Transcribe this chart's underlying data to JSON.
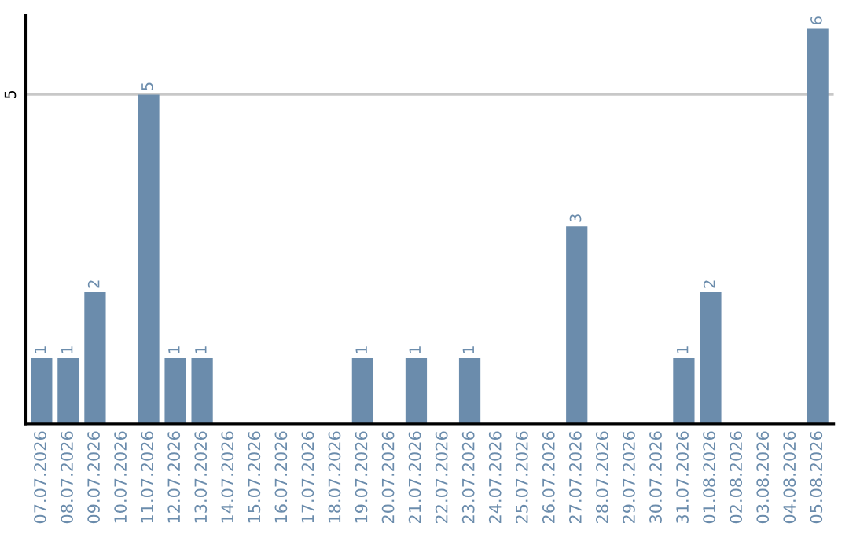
{
  "chart_data": {
    "type": "bar",
    "categories": [
      "07.07.2026",
      "08.07.2026",
      "09.07.2026",
      "10.07.2026",
      "11.07.2026",
      "12.07.2026",
      "13.07.2026",
      "14.07.2026",
      "15.07.2026",
      "16.07.2026",
      "17.07.2026",
      "18.07.2026",
      "19.07.2026",
      "20.07.2026",
      "21.07.2026",
      "22.07.2026",
      "23.07.2026",
      "24.07.2026",
      "25.07.2026",
      "26.07.2026",
      "27.07.2026",
      "28.07.2026",
      "29.07.2026",
      "30.07.2026",
      "31.07.2026",
      "01.08.2026",
      "02.08.2026",
      "03.08.2026",
      "04.08.2026",
      "05.08.2026"
    ],
    "values": [
      1,
      1,
      2,
      0,
      5,
      1,
      1,
      0,
      0,
      0,
      0,
      0,
      1,
      0,
      1,
      0,
      1,
      0,
      0,
      0,
      3,
      0,
      0,
      0,
      1,
      2,
      0,
      0,
      0,
      6
    ],
    "value_labels": [
      "1",
      "1",
      "2",
      null,
      "5",
      "1",
      "1",
      null,
      null,
      null,
      null,
      null,
      "1",
      null,
      "1",
      null,
      "1",
      null,
      null,
      null,
      "3",
      null,
      null,
      null,
      "1",
      "2",
      null,
      null,
      null,
      "6"
    ],
    "color": "#6b8cac",
    "ylim": [
      0,
      6.2
    ],
    "yticks": [
      5
    ],
    "grid": "y",
    "legend": false
  }
}
